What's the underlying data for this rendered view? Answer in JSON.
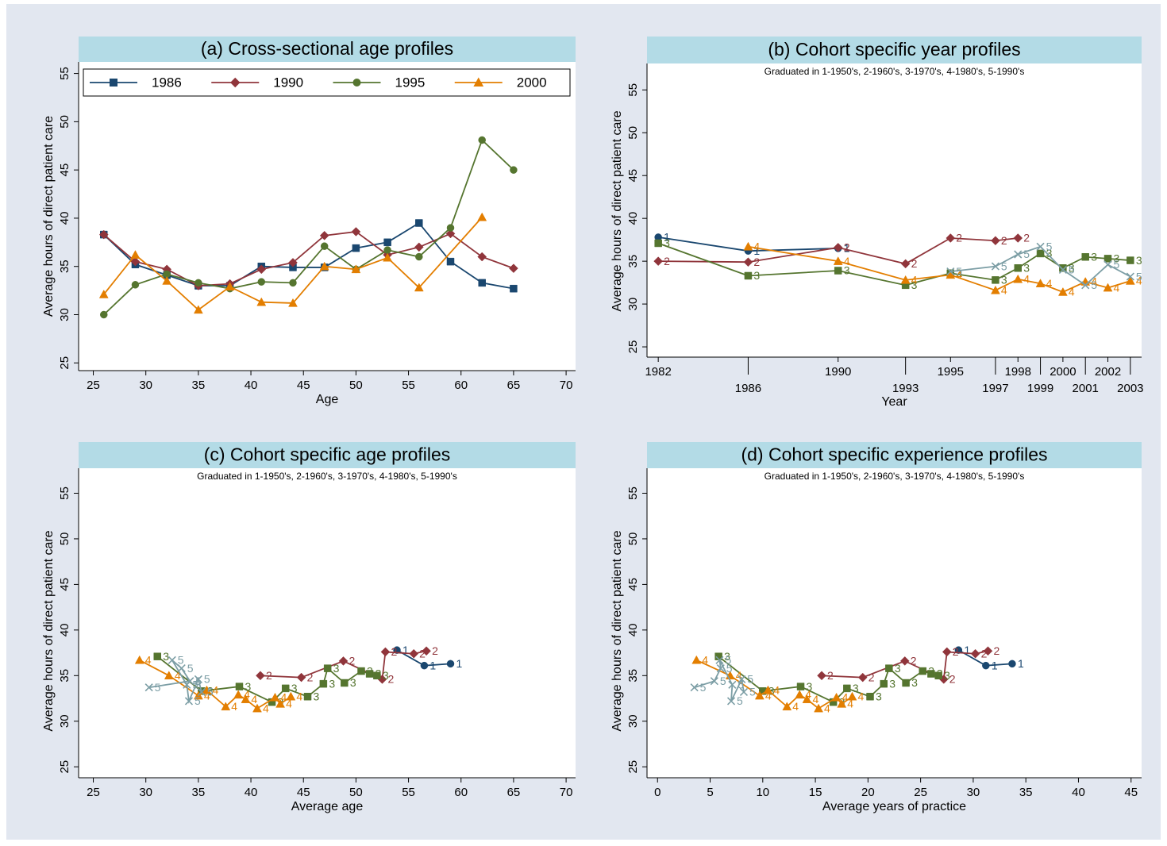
{
  "chart_data": [
    {
      "type": "line",
      "title": "(a) Cross-sectional age profiles",
      "xlabel": "Age",
      "ylabel": "Average hours of direct patient care",
      "xlim": [
        23.6,
        70.9
      ],
      "ylim": [
        24.2,
        56.2
      ],
      "xticks": [
        25,
        30,
        35,
        40,
        45,
        50,
        55,
        60,
        65,
        70
      ],
      "yticks": [
        25,
        30,
        35,
        40,
        45,
        50,
        55
      ],
      "legend": "top",
      "point_labels": false,
      "xtick_stagger": false,
      "series": [
        {
          "name": "1986",
          "color": "#1a476f",
          "marker": "square",
          "x": [
            26,
            29,
            32,
            35,
            38,
            41,
            44,
            47,
            50,
            53,
            56,
            59,
            62,
            65
          ],
          "values": [
            38.3,
            35.2,
            34.1,
            33.0,
            33.0,
            35.0,
            34.9,
            34.9,
            36.9,
            37.5,
            39.5,
            35.5,
            33.3,
            32.7
          ]
        },
        {
          "name": "1990",
          "color": "#90353b",
          "marker": "diamond",
          "x": [
            26,
            29,
            32,
            35,
            38,
            41,
            44,
            47,
            50,
            53,
            56,
            59,
            62,
            65
          ],
          "values": [
            38.3,
            35.5,
            34.7,
            33.0,
            33.2,
            34.7,
            35.4,
            38.2,
            38.6,
            36.2,
            37.0,
            38.4,
            36.0,
            34.8
          ]
        },
        {
          "name": "1995",
          "color": "#55752f",
          "marker": "circle",
          "x": [
            26,
            29,
            32,
            35,
            38,
            41,
            44,
            47,
            50,
            53,
            56,
            59,
            62,
            65
          ],
          "values": [
            30.0,
            33.1,
            34.2,
            33.3,
            32.7,
            33.4,
            33.3,
            37.1,
            34.7,
            36.7,
            36.0,
            39.0,
            48.1,
            45.0
          ]
        },
        {
          "name": "2000",
          "color": "#e37e00",
          "marker": "triangle",
          "x": [
            26,
            29,
            32,
            35,
            38,
            41,
            44,
            47,
            50,
            53,
            56,
            62
          ],
          "values": [
            32.1,
            36.2,
            33.5,
            30.5,
            32.9,
            31.3,
            31.2,
            35.0,
            34.7,
            35.9,
            32.8,
            40.1
          ]
        }
      ]
    },
    {
      "type": "line",
      "title": "(b) Cohort specific year profiles",
      "subtitle": "Graduated in 1-1950's, 2-1960's, 3-1970's, 4-1980's, 5-1990's",
      "xlabel": "Year",
      "ylabel": "Average hours of direct patient care",
      "xlim": [
        1981.5,
        2003.5
      ],
      "ylim": [
        23.8,
        57.9
      ],
      "xticks": [
        1982,
        1986,
        1990,
        1993,
        1995,
        1997,
        1998,
        1999,
        2000,
        2001,
        2002,
        2003
      ],
      "yticks": [
        25,
        30,
        35,
        40,
        45,
        50,
        55
      ],
      "point_labels": true,
      "xtick_stagger": true,
      "series": [
        {
          "name": "1",
          "color": "#1a476f",
          "marker": "circle",
          "x": [
            1982,
            1986,
            1990
          ],
          "values": [
            37.8,
            36.2,
            36.5
          ]
        },
        {
          "name": "2",
          "color": "#90353b",
          "marker": "diamond",
          "x": [
            1982,
            1986,
            1990,
            1993,
            1995,
            1997,
            1998
          ],
          "values": [
            35.0,
            34.9,
            36.6,
            34.7,
            37.7,
            37.4,
            37.7
          ]
        },
        {
          "name": "3",
          "color": "#55752f",
          "marker": "square",
          "x": [
            1982,
            1986,
            1990,
            1993,
            1995,
            1997,
            1998,
            1999,
            2000,
            2001,
            2002,
            2003
          ],
          "values": [
            37.1,
            33.3,
            33.9,
            32.2,
            33.6,
            32.8,
            34.2,
            35.9,
            34.2,
            35.5,
            35.3,
            35.1
          ]
        },
        {
          "name": "4",
          "color": "#e37e00",
          "marker": "triangle",
          "x": [
            1986,
            1990,
            1993,
            1995,
            1997,
            1998,
            1999,
            2000,
            2001,
            2002,
            2003
          ],
          "values": [
            36.7,
            35.0,
            32.8,
            33.4,
            31.6,
            32.9,
            32.4,
            31.4,
            32.6,
            31.9,
            32.7
          ]
        },
        {
          "name": "5",
          "color": "#7c9ea5",
          "marker": "x",
          "x": [
            1995,
            1997,
            1998,
            1999,
            2000,
            2001,
            2002,
            2003
          ],
          "values": [
            33.8,
            34.4,
            35.8,
            36.7,
            34.0,
            32.2,
            34.6,
            33.2
          ]
        }
      ]
    },
    {
      "type": "line",
      "title": "(c) Cohort specific age profiles",
      "subtitle": "Graduated in 1-1950's, 2-1960's, 3-1970's, 4-1980's, 5-1990's",
      "xlabel": "Average age",
      "ylabel": "Average hours of direct patient care",
      "xlim": [
        23.6,
        70.9
      ],
      "ylim": [
        23.8,
        56.0
      ],
      "xticks": [
        25,
        30,
        35,
        40,
        45,
        50,
        55,
        60,
        65,
        70
      ],
      "yticks": [
        25,
        30,
        35,
        40,
        45,
        50,
        55
      ],
      "point_labels": true,
      "xtick_stagger": false,
      "series": [
        {
          "name": "1",
          "color": "#1a476f",
          "marker": "circle",
          "x": [
            53.9,
            56.5,
            59.0
          ],
          "values": [
            37.8,
            36.1,
            36.3
          ]
        },
        {
          "name": "2",
          "color": "#90353b",
          "marker": "diamond",
          "x": [
            40.9,
            44.8,
            48.8,
            52.5,
            52.8,
            55.5,
            56.7
          ],
          "values": [
            35.0,
            34.8,
            36.6,
            34.6,
            37.6,
            37.4,
            37.7
          ]
        },
        {
          "name": "3",
          "color": "#55752f",
          "marker": "square",
          "x": [
            31.1,
            35.3,
            38.9,
            42.0,
            43.3,
            45.4,
            46.9,
            47.3,
            48.9,
            50.5,
            51.3,
            52.0
          ],
          "values": [
            37.1,
            33.3,
            33.8,
            32.1,
            33.6,
            32.7,
            34.1,
            35.8,
            34.2,
            35.5,
            35.2,
            35.0
          ]
        },
        {
          "name": "4",
          "color": "#e37e00",
          "marker": "triangle",
          "x": [
            29.4,
            32.2,
            35.0,
            35.8,
            37.6,
            38.8,
            39.5,
            40.6,
            42.3,
            42.8,
            43.8
          ],
          "values": [
            36.7,
            35.0,
            32.8,
            33.4,
            31.6,
            32.9,
            32.4,
            31.4,
            32.6,
            31.9,
            32.7
          ]
        },
        {
          "name": "5",
          "color": "#7c9ea5",
          "marker": "x",
          "x": [
            30.3,
            34.2,
            33.4,
            32.5,
            33.9,
            34.1,
            35.0,
            35.3
          ],
          "values": [
            33.7,
            34.4,
            35.8,
            36.7,
            34.0,
            32.2,
            34.6,
            33.2
          ]
        }
      ]
    },
    {
      "type": "line",
      "title": "(d) Cohort specific experience profiles",
      "subtitle": "Graduated in 1-1950's, 2-1960's, 3-1970's, 4-1980's, 5-1990's",
      "xlabel": "Average years of practice",
      "ylabel": "Average hours of direct patient care",
      "xlim": [
        -1.0,
        46.0
      ],
      "ylim": [
        23.8,
        56.0
      ],
      "xticks": [
        0,
        5,
        10,
        15,
        20,
        25,
        30,
        35,
        40,
        45
      ],
      "yticks": [
        25,
        30,
        35,
        40,
        45,
        50,
        55
      ],
      "point_labels": true,
      "xtick_stagger": false,
      "series": [
        {
          "name": "1",
          "color": "#1a476f",
          "marker": "circle",
          "x": [
            28.6,
            31.2,
            33.7
          ],
          "values": [
            37.8,
            36.1,
            36.3
          ]
        },
        {
          "name": "2",
          "color": "#90353b",
          "marker": "diamond",
          "x": [
            15.6,
            19.5,
            23.5,
            27.2,
            27.5,
            30.2,
            31.4
          ],
          "values": [
            35.0,
            34.8,
            36.6,
            34.6,
            37.6,
            37.4,
            37.7
          ]
        },
        {
          "name": "3",
          "color": "#55752f",
          "marker": "square",
          "x": [
            5.8,
            10.0,
            13.6,
            16.7,
            18.0,
            20.2,
            21.5,
            22.0,
            23.6,
            25.2,
            26.0,
            26.7
          ],
          "values": [
            37.1,
            33.3,
            33.8,
            32.1,
            33.6,
            32.7,
            34.1,
            35.8,
            34.2,
            35.5,
            35.2,
            35.0
          ]
        },
        {
          "name": "4",
          "color": "#e37e00",
          "marker": "triangle",
          "x": [
            3.7,
            6.9,
            9.7,
            10.5,
            12.3,
            13.5,
            14.2,
            15.3,
            17.0,
            17.5,
            18.5
          ],
          "values": [
            36.7,
            35.0,
            32.8,
            33.4,
            31.6,
            32.9,
            32.4,
            31.4,
            32.6,
            31.9,
            32.7
          ]
        },
        {
          "name": "5",
          "color": "#7c9ea5",
          "marker": "x",
          "x": [
            3.5,
            5.4,
            6.0,
            5.9,
            7.1,
            7.0,
            8.0,
            8.2
          ],
          "values": [
            33.7,
            34.4,
            35.8,
            36.7,
            34.0,
            32.2,
            34.6,
            33.2
          ]
        }
      ]
    }
  ]
}
